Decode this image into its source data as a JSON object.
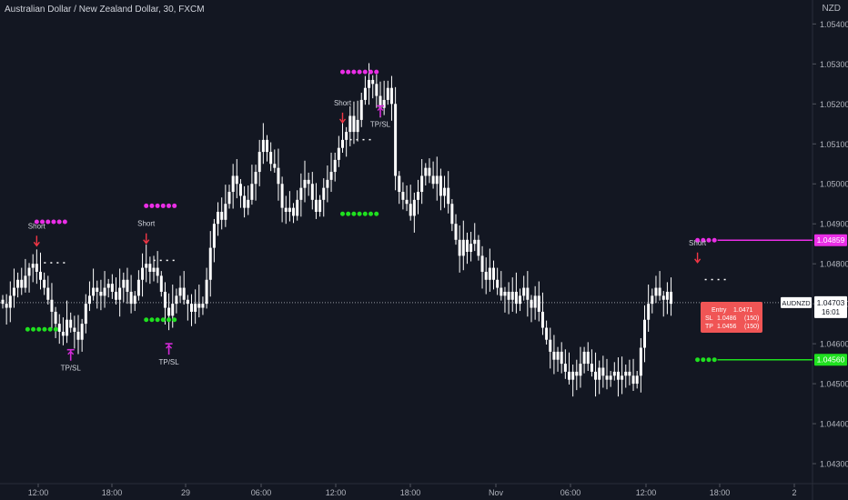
{
  "header": {
    "title": "Australian Dollar / New Zealand Dollar, 30, FXCM",
    "currency": "NZD"
  },
  "colors": {
    "background": "#131722",
    "candle": "#ffffff",
    "tp_line": "#ea2ee6",
    "sl_line": "#1fe01f",
    "short_arrow": "#f23645",
    "tpsl_marker": "#d32ad8",
    "info_box": "#f05555",
    "price_tag": "#ffffff"
  },
  "price_axis": {
    "ticks": [
      "1.05400",
      "1.05300",
      "1.05200",
      "1.05100",
      "1.05000",
      "1.04900",
      "1.04800",
      "1.04700",
      "1.04600",
      "1.04500",
      "1.04400",
      "1.04300"
    ],
    "range": [
      1.0425,
      1.0546
    ]
  },
  "time_axis": {
    "labels": [
      "12:00",
      "18:00",
      "29",
      "06:00",
      "12:00",
      "18:00",
      "Nov",
      "06:00",
      "12:00",
      "18:00",
      "2"
    ]
  },
  "price_tags": {
    "upper": "1.04859",
    "symbol": "AUDNZD",
    "current": "1.04703",
    "countdown": "16:01",
    "lower": "1.04560"
  },
  "info_box": {
    "entry_label": "Entry",
    "entry_value": "1.0471",
    "sl_label": "SL",
    "sl_value": "1.0486",
    "sl_points": "(150)",
    "tp_label": "TP",
    "tp_value": "1.0456",
    "tp_points": "(150)"
  },
  "signals": {
    "short_label": "Short",
    "tpsl_label": "TP/SL",
    "entries": [
      {
        "label": "Short",
        "candle": 9,
        "price": 1.04802,
        "tp": 1.04905,
        "sl": 1.04636,
        "has_tpsl": true
      },
      {
        "label": "Short",
        "candle": 38,
        "price": 1.04808,
        "tp": 1.04945,
        "sl": 1.0466,
        "has_tpsl": true
      },
      {
        "label": "Short",
        "candle": 90,
        "price": 1.0511,
        "tp": 1.0528,
        "sl": 1.04925,
        "has_tpsl": true
      },
      {
        "label": "Short",
        "candle": 184,
        "price": 1.0476,
        "tp": 1.04859,
        "sl": 1.0456,
        "has_tpsl": false
      }
    ],
    "tpsl_exits": [
      {
        "label": "TP/SL",
        "candle": 18,
        "price": 1.04585
      },
      {
        "label": "TP/SL",
        "candle": 44,
        "price": 1.046
      },
      {
        "label": "TP/SL",
        "candle": 100,
        "price": 1.05195
      }
    ]
  },
  "chart_data": {
    "type": "candlestick",
    "symbol": "AUDNZD",
    "timeframe": "30",
    "series_close": [
      1.047,
      1.0469,
      1.0472,
      1.0474,
      1.0476,
      1.0474,
      1.0477,
      1.0479,
      1.048,
      1.0478,
      1.0476,
      1.0474,
      1.0471,
      1.0468,
      1.0465,
      1.0463,
      1.0462,
      1.0466,
      1.0464,
      1.0463,
      1.0461,
      1.0465,
      1.047,
      1.0472,
      1.0474,
      1.0473,
      1.0472,
      1.0474,
      1.0475,
      1.0473,
      1.0471,
      1.0474,
      1.0476,
      1.0473,
      1.047,
      1.0472,
      1.0476,
      1.0479,
      1.048,
      1.0478,
      1.0479,
      1.0477,
      1.0473,
      1.0469,
      1.0467,
      1.047,
      1.0472,
      1.0474,
      1.0471,
      1.047,
      1.0468,
      1.047,
      1.0469,
      1.047,
      1.0476,
      1.0484,
      1.049,
      1.0493,
      1.0491,
      1.0495,
      1.0498,
      1.0502,
      1.05,
      1.0497,
      1.0494,
      1.0496,
      1.05,
      1.0503,
      1.0508,
      1.0511,
      1.0508,
      1.0505,
      1.0504,
      1.05,
      1.0494,
      1.0493,
      1.0494,
      1.0492,
      1.0496,
      1.0499,
      1.0501,
      1.05,
      1.0496,
      1.0493,
      1.0496,
      1.0499,
      1.0501,
      1.0503,
      1.0506,
      1.0509,
      1.0511,
      1.0513,
      1.0517,
      1.0513,
      1.0516,
      1.0521,
      1.0524,
      1.0526,
      1.0525,
      1.0522,
      1.0519,
      1.0521,
      1.0524,
      1.052,
      1.0502,
      1.0498,
      1.0496,
      1.0495,
      1.0492,
      1.0496,
      1.0498,
      1.0502,
      1.0504,
      1.0502,
      1.05,
      1.0502,
      1.0497,
      1.0499,
      1.0495,
      1.049,
      1.0486,
      1.0482,
      1.0486,
      1.0483,
      1.0485,
      1.0486,
      1.0482,
      1.0478,
      1.0476,
      1.0479,
      1.0476,
      1.0474,
      1.0472,
      1.0473,
      1.0471,
      1.0473,
      1.047,
      1.0472,
      1.0474,
      1.0471,
      1.0469,
      1.0472,
      1.0468,
      1.0464,
      1.0461,
      1.0458,
      1.0456,
      1.0458,
      1.0455,
      1.0453,
      1.0451,
      1.0453,
      1.0452,
      1.0455,
      1.0458,
      1.0455,
      1.0453,
      1.0451,
      1.0454,
      1.0452,
      1.0451,
      1.0452,
      1.0453,
      1.0451,
      1.0452,
      1.0453,
      1.0452,
      1.045,
      1.0452,
      1.0459,
      1.0466,
      1.047,
      1.0472,
      1.0474,
      1.0472,
      1.0471,
      1.0473,
      1.047
    ],
    "last_price": 1.04703,
    "ylim": [
      1.0425,
      1.0546
    ],
    "annotations": [
      "Short",
      "Short",
      "Short",
      "Short",
      "TP/SL",
      "TP/SL",
      "TP/SL"
    ]
  }
}
